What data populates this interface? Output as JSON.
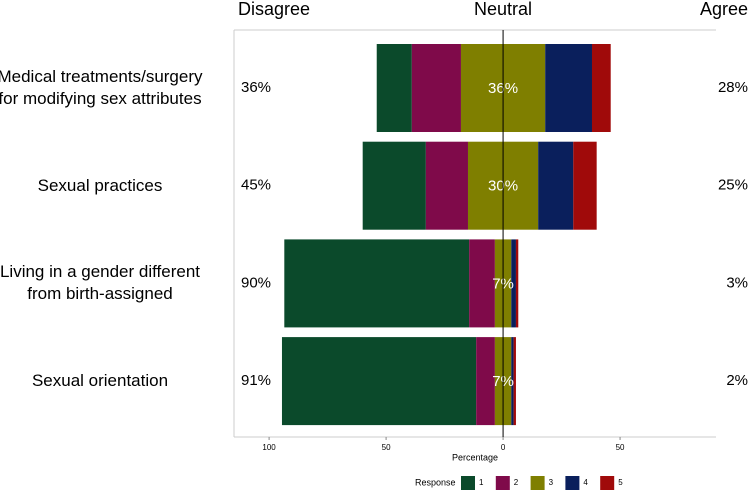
{
  "chart_data": {
    "type": "diverging_bar",
    "column_headers": [
      "Disagree",
      "Neutral",
      "Agree"
    ],
    "categories": [
      "Medical treatments/surgery\nfor modifying sex attributes",
      "Sexual practices",
      "Living in a gender different\nfrom birth-assigned",
      "Sexual orientation"
    ],
    "series": [
      {
        "name": "1",
        "color": "#0b4a2b",
        "values": [
          15,
          27,
          79,
          83
        ]
      },
      {
        "name": "2",
        "color": "#7f0a4a",
        "values": [
          21,
          18,
          11,
          8
        ]
      },
      {
        "name": "3",
        "color": "#7f7f00",
        "values": [
          36,
          30,
          7,
          7
        ],
        "value_labels": [
          "36%",
          "30%",
          "7%",
          "7%"
        ]
      },
      {
        "name": "4",
        "color": "#0a1f5c",
        "values": [
          20,
          15,
          2,
          1
        ]
      },
      {
        "name": "5",
        "color": "#a00a0a",
        "values": [
          8,
          10,
          1,
          1
        ]
      }
    ],
    "totals": {
      "disagree": {
        "values": [
          36,
          45,
          90,
          91
        ],
        "value_labels": [
          "36%",
          "45%",
          "90%",
          "91%"
        ]
      },
      "agree": {
        "values": [
          28,
          25,
          3,
          2
        ],
        "value_labels": [
          "28%",
          "25%",
          "3%",
          "2%"
        ]
      }
    },
    "xlabel": "Percentage",
    "xlim": [
      -115,
      91
    ],
    "xticks": [
      {
        "value": -100,
        "label": "100"
      },
      {
        "value": -50,
        "label": "50"
      },
      0,
      50
    ],
    "legend_title": "Response"
  }
}
